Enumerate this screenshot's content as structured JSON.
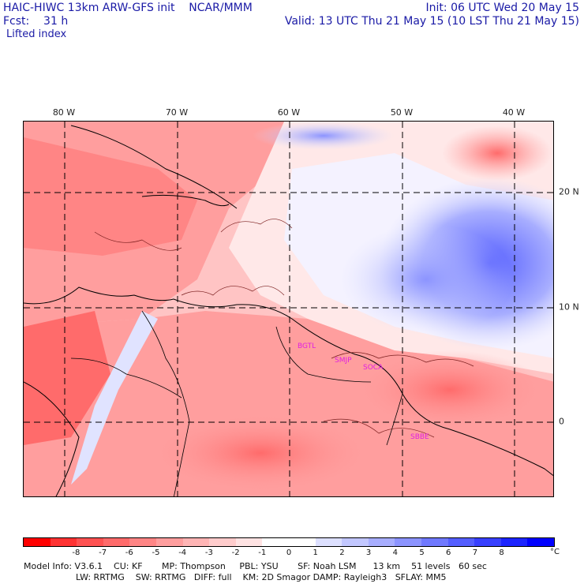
{
  "header": {
    "title": "HAIC-HIWC 13km ARW-GFS init    NCAR/MMM",
    "forecast": "Fcst:    31 h",
    "field": "Lifted index",
    "init": "Init: 06 UTC Wed 20 May 15",
    "valid": "Valid: 13 UTC Thu 21 May 15 (10 LST Thu 21 May 15)"
  },
  "map": {
    "longitude_labels": [
      "80 W",
      "70 W",
      "60 W",
      "50 W",
      "40 W"
    ],
    "latitude_labels": [
      "20 N",
      "10 N",
      "0"
    ],
    "stations": [
      "BGTL",
      "SMJP",
      "SOCA",
      "SBBE"
    ]
  },
  "colorbar": {
    "colors": [
      "#ff0000",
      "#ff3333",
      "#ff5252",
      "#ff6b6b",
      "#ff8585",
      "#ff9e9e",
      "#ffb5b5",
      "#ffcccc",
      "#ffe3e3",
      "#ffffff",
      "#ffffff",
      "#dde0ff",
      "#c2c7ff",
      "#a8aeff",
      "#8c94ff",
      "#7079ff",
      "#545eff",
      "#3840ff",
      "#1c24ff",
      "#0000ff"
    ],
    "labels": [
      "-8",
      "-7",
      "-6",
      "-5",
      "-4",
      "-3",
      "-2",
      "-1",
      "0",
      "1",
      "2",
      "3",
      "4",
      "5",
      "6",
      "7",
      "8"
    ],
    "unit": "°C"
  },
  "footer": {
    "line1": "Model Info: V3.6.1    CU: KF       MP: Thompson     PBL: YSU       SF: Noah LSM      13 km    51 levels   60 sec",
    "line2": "LW: RRTMG    SW: RRTMG   DIFF: full    KM: 2D Smagor DAMP: Rayleigh3   SFLAY: MM5"
  }
}
